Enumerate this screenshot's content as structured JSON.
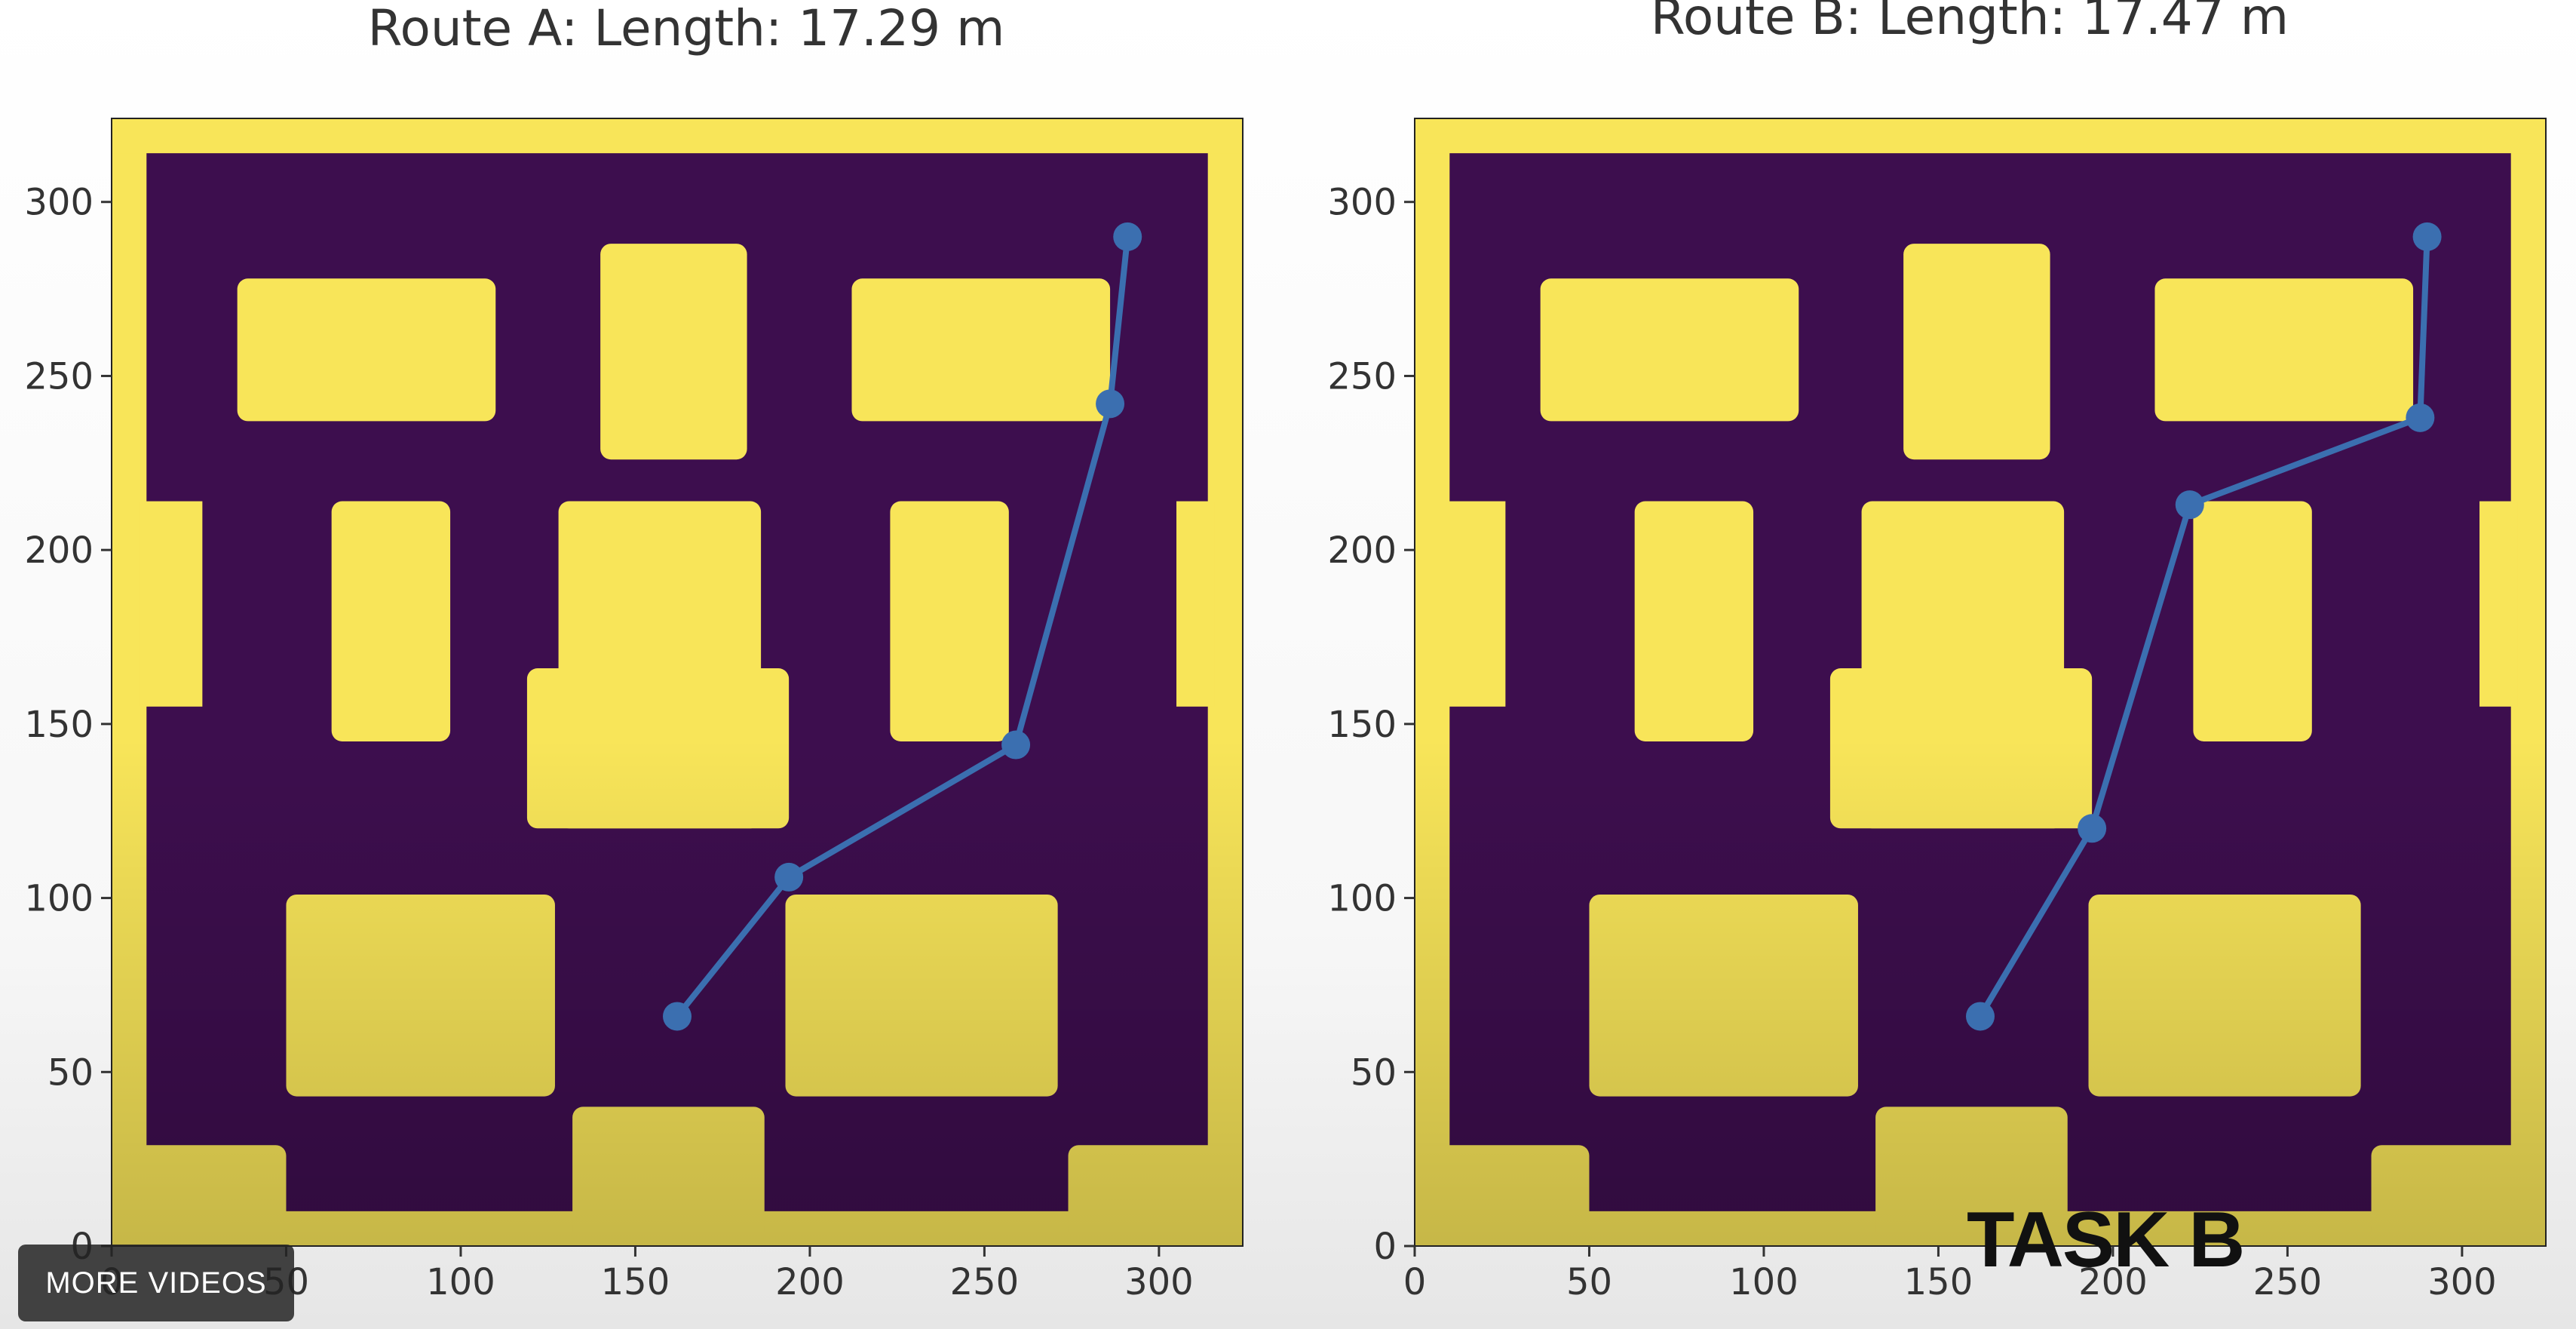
{
  "colors": {
    "free_space": "#3d0e4e",
    "obstacle": "#f8e559",
    "route": "#3b6fb0",
    "axis_text": "#333333"
  },
  "overlay": {
    "more_videos_label": "MORE VIDEOS",
    "task_label": "TASK B"
  },
  "chart_data": [
    {
      "type": "line",
      "subtype": "occupancy-grid route plot",
      "title": "Route A: Length: 17.29 m",
      "xlim": [
        0,
        324
      ],
      "ylim": [
        0,
        324
      ],
      "xticks": [
        0,
        50,
        100,
        150,
        200,
        250,
        300
      ],
      "yticks": [
        0,
        50,
        100,
        150,
        200,
        250,
        300
      ],
      "grid": false,
      "route": {
        "x": [
          162,
          194,
          259,
          286,
          291
        ],
        "y": [
          66,
          106,
          144,
          242,
          290
        ]
      }
    },
    {
      "type": "line",
      "subtype": "occupancy-grid route plot",
      "title": "Route B: Length: 17.47 m",
      "xlim": [
        0,
        324
      ],
      "ylim": [
        0,
        324
      ],
      "xticks": [
        0,
        50,
        100,
        150,
        200,
        250,
        300
      ],
      "yticks": [
        0,
        50,
        100,
        150,
        200,
        250,
        300
      ],
      "grid": false,
      "route": {
        "x": [
          162,
          194,
          222,
          288,
          290
        ],
        "y": [
          66,
          120,
          213,
          238,
          290
        ]
      }
    }
  ]
}
